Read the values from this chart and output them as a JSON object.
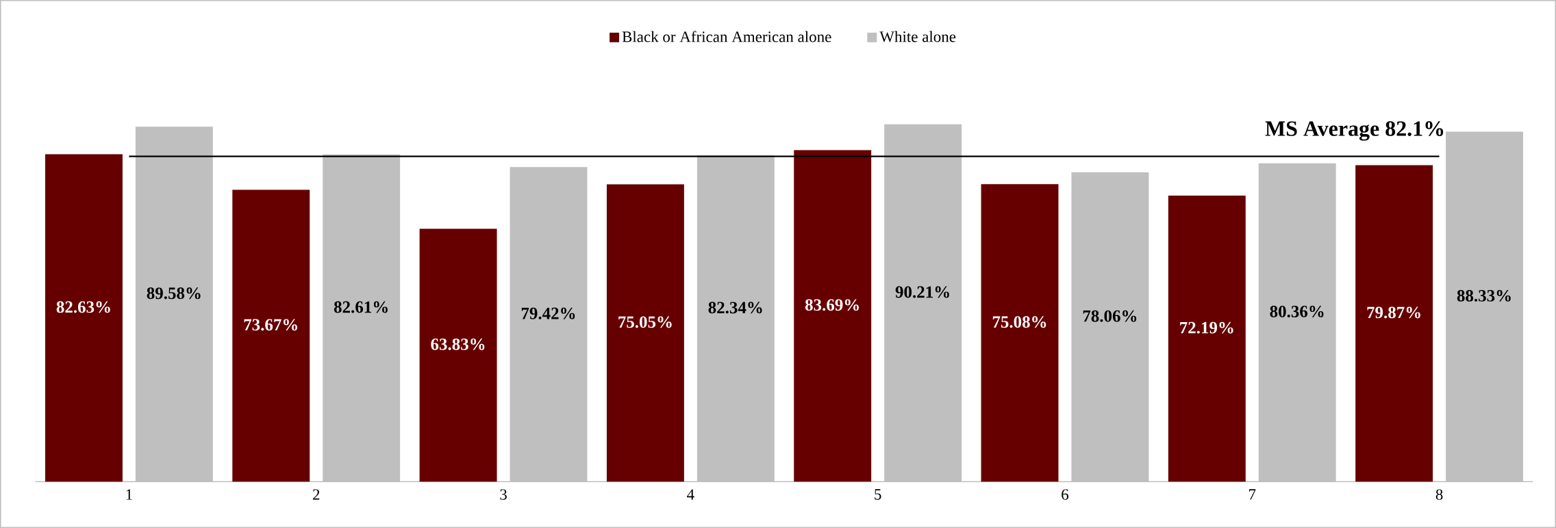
{
  "chart_data": {
    "type": "bar",
    "categories": [
      "1",
      "2",
      "3",
      "4",
      "5",
      "6",
      "7",
      "8"
    ],
    "series": [
      {
        "name": "Black or African American alone",
        "color": "#660000",
        "values": [
          82.63,
          73.67,
          63.83,
          75.05,
          83.69,
          75.08,
          72.19,
          79.87
        ],
        "value_labels": [
          "82.63%",
          "73.67%",
          "63.83%",
          "75.05%",
          "83.69%",
          "75.08%",
          "72.19%",
          "79.87%"
        ]
      },
      {
        "name": "White alone",
        "color": "#bfbfbf",
        "values": [
          89.58,
          82.61,
          79.42,
          82.34,
          90.21,
          78.06,
          80.36,
          88.33
        ],
        "value_labels": [
          "89.58%",
          "82.61%",
          "79.42%",
          "82.34%",
          "90.21%",
          "78.06%",
          "80.36%",
          "88.33%"
        ]
      }
    ],
    "ref_lines": [
      {
        "axis": "y",
        "value": 82.1,
        "label": "MS Average 82.1%",
        "color": "#000000"
      }
    ],
    "legend": "top"
  }
}
